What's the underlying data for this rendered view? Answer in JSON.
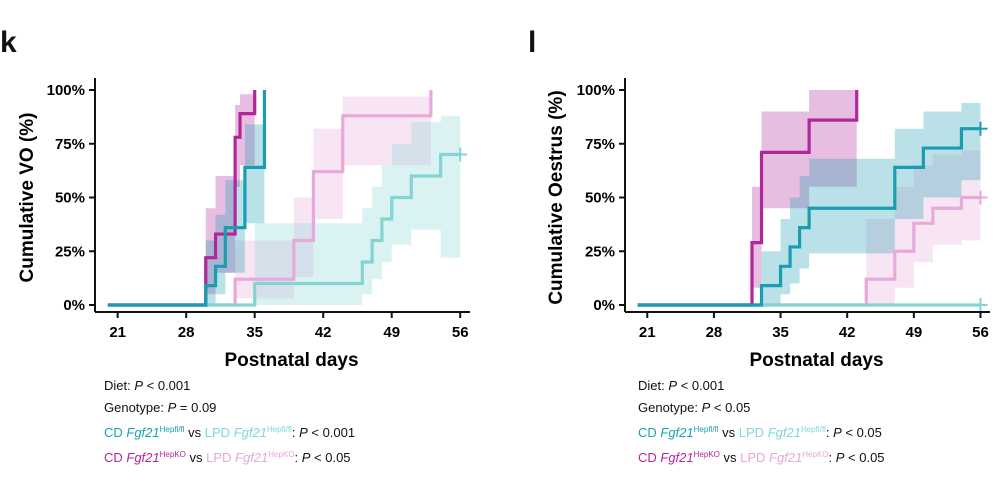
{
  "panels": [
    {
      "letter": "k",
      "ylabel": "Cumulative VO (%)",
      "stats": {
        "diet_label": "Diet: ",
        "diet_p": "P",
        "diet_val": " < 0.001",
        "geno_label": "Genotype: ",
        "geno_p": "P",
        "geno_val": " = 0.09",
        "cmp1_a": "CD ",
        "cmp1_gene": "Fgf21",
        "cmp1_sup": "Hepfl/fl",
        "cmp1_vs": " vs ",
        "cmp1_b": "LPD ",
        "cmp1_gene2": "Fgf21",
        "cmp1_sup2": "Hepfl/fl",
        "cmp1_colon": ": ",
        "cmp1_p": "P",
        "cmp1_val": " < 0.001",
        "cmp2_a": "CD ",
        "cmp2_gene": "Fgf21",
        "cmp2_sup": "HepKO",
        "cmp2_vs": " vs ",
        "cmp2_b": "LPD ",
        "cmp2_gene2": "Fgf21",
        "cmp2_sup2": "HepKO",
        "cmp2_colon": ": ",
        "cmp2_p": "P",
        "cmp2_val": " < 0.05"
      }
    },
    {
      "letter": "l",
      "ylabel": "Cumulative Oestrus (%)",
      "stats": {
        "diet_label": "Diet: ",
        "diet_p": "P",
        "diet_val": " < 0.001",
        "geno_label": "Genotype: ",
        "geno_p": "P",
        "geno_val": " < 0.05",
        "cmp1_a": "CD ",
        "cmp1_gene": "Fgf21",
        "cmp1_sup": "Hepfl/fl",
        "cmp1_vs": " vs ",
        "cmp1_b": "LPD ",
        "cmp1_gene2": "Fgf21",
        "cmp1_sup2": "Hepfl/fl",
        "cmp1_colon": ": ",
        "cmp1_p": "P",
        "cmp1_val": " < 0.05",
        "cmp2_a": "CD ",
        "cmp2_gene": "Fgf21",
        "cmp2_sup": "HepKO",
        "cmp2_vs": " vs ",
        "cmp2_b": "LPD ",
        "cmp2_gene2": "Fgf21",
        "cmp2_sup2": "HepKO",
        "cmp2_colon": ": ",
        "cmp2_p": "P",
        "cmp2_val": " < 0.05"
      }
    }
  ],
  "colors": {
    "cd_flfl": "#1a9db0",
    "lpd_flfl": "#86d3d4",
    "cd_ko": "#b0279a",
    "lpd_ko": "#e7a9da"
  },
  "chart_data": [
    {
      "type": "line",
      "title": "k",
      "xlabel": "Postnatal days",
      "ylabel": "Cumulative VO (%)",
      "xlim": [
        19.5,
        57
      ],
      "ylim": [
        0,
        100
      ],
      "xticks": [
        21,
        28,
        35,
        42,
        49,
        56
      ],
      "xtick_labels": [
        "21",
        "28",
        "35",
        "42",
        "49",
        "56"
      ],
      "yticks": [
        0,
        25,
        50,
        75,
        100
      ],
      "ytick_labels": [
        "0%",
        "25%",
        "50%",
        "75%",
        "100%"
      ],
      "series": [
        {
          "name": "LPD Fgf21 HepKO",
          "color_key": "lpd_ko",
          "x": [
            20,
            30,
            33,
            36,
            39,
            41,
            44,
            53,
            53
          ],
          "y": [
            0,
            0,
            12,
            12,
            30,
            62,
            88,
            88,
            100
          ],
          "lo": [
            0,
            0,
            3,
            3,
            13,
            40,
            65,
            65,
            65
          ],
          "hi": [
            0,
            0,
            30,
            30,
            50,
            82,
            97,
            97,
            100
          ],
          "censor": []
        },
        {
          "name": "LPD Fgf21 Hepfl/fl",
          "color_key": "lpd_flfl",
          "x": [
            20,
            34,
            35,
            46,
            47,
            48,
            49,
            51,
            54,
            56
          ],
          "y": [
            0,
            0,
            10,
            20,
            30,
            40,
            50,
            60,
            70,
            70
          ],
          "lo": [
            0,
            0,
            0,
            5,
            12,
            20,
            28,
            35,
            22,
            22
          ],
          "hi": [
            0,
            0,
            38,
            45,
            55,
            65,
            75,
            85,
            88,
            88
          ],
          "censor": [
            [
              56,
              70
            ]
          ]
        },
        {
          "name": "CD Fgf21 HepKO",
          "color_key": "cd_ko",
          "x": [
            20,
            30,
            31,
            32,
            33,
            33.5,
            34,
            35
          ],
          "y": [
            0,
            22,
            33,
            33,
            78,
            89,
            89,
            100
          ],
          "lo": [
            0,
            5,
            15,
            15,
            55,
            65,
            65,
            95
          ],
          "hi": [
            0,
            45,
            60,
            60,
            93,
            98,
            98,
            100
          ],
          "censor": []
        },
        {
          "name": "CD Fgf21 Hepfl/fl",
          "color_key": "cd_flfl",
          "x": [
            20,
            30,
            31,
            32,
            33,
            34,
            35.5,
            36
          ],
          "y": [
            0,
            9,
            18,
            36,
            36,
            64,
            64,
            100
          ],
          "lo": [
            0,
            0,
            5,
            15,
            15,
            38,
            38,
            90
          ],
          "hi": [
            0,
            30,
            42,
            58,
            58,
            84,
            84,
            100
          ],
          "censor": []
        }
      ]
    },
    {
      "type": "line",
      "title": "l",
      "xlabel": "Postnatal days",
      "ylabel": "Cumulative Oestrus (%)",
      "xlim": [
        19.5,
        57
      ],
      "ylim": [
        0,
        100
      ],
      "xticks": [
        21,
        28,
        35,
        42,
        49,
        56
      ],
      "xtick_labels": [
        "21",
        "28",
        "35",
        "42",
        "49",
        "56"
      ],
      "yticks": [
        0,
        25,
        50,
        75,
        100
      ],
      "ytick_labels": [
        "0%",
        "25%",
        "50%",
        "75%",
        "100%"
      ],
      "series": [
        {
          "name": "LPD Fgf21 HepKO",
          "color_key": "lpd_ko",
          "x": [
            20,
            44,
            47,
            49,
            51,
            54,
            56
          ],
          "y": [
            0,
            12,
            25,
            38,
            45,
            50,
            50
          ],
          "lo": [
            0,
            0,
            8,
            20,
            28,
            30,
            30
          ],
          "hi": [
            0,
            40,
            55,
            65,
            70,
            72,
            72
          ],
          "censor": [
            [
              56,
              50
            ]
          ]
        },
        {
          "name": "LPD Fgf21 Hepfl/fl",
          "color_key": "lpd_flfl",
          "x": [
            20,
            56
          ],
          "y": [
            0,
            0
          ],
          "lo": [
            0,
            0
          ],
          "hi": [
            0,
            0
          ],
          "censor": [
            [
              56,
              0
            ]
          ]
        },
        {
          "name": "CD Fgf21 HepKO",
          "color_key": "cd_ko",
          "x": [
            20,
            32,
            33,
            37,
            38,
            42,
            43
          ],
          "y": [
            0,
            29,
            71,
            71,
            86,
            86,
            100
          ],
          "lo": [
            0,
            8,
            45,
            45,
            55,
            55,
            90
          ],
          "hi": [
            0,
            55,
            90,
            90,
            100,
            100,
            100
          ],
          "censor": []
        },
        {
          "name": "CD Fgf21 Hepfl/fl",
          "color_key": "cd_flfl",
          "x": [
            20,
            33,
            35,
            36,
            37,
            38,
            47,
            50,
            54,
            56
          ],
          "y": [
            0,
            9,
            18,
            27,
            36,
            45,
            64,
            73,
            82,
            82
          ],
          "lo": [
            0,
            0,
            5,
            10,
            17,
            24,
            40,
            50,
            58,
            58
          ],
          "hi": [
            0,
            25,
            40,
            50,
            60,
            68,
            82,
            90,
            94,
            94
          ],
          "censor": [
            [
              56,
              82
            ]
          ]
        }
      ]
    }
  ]
}
